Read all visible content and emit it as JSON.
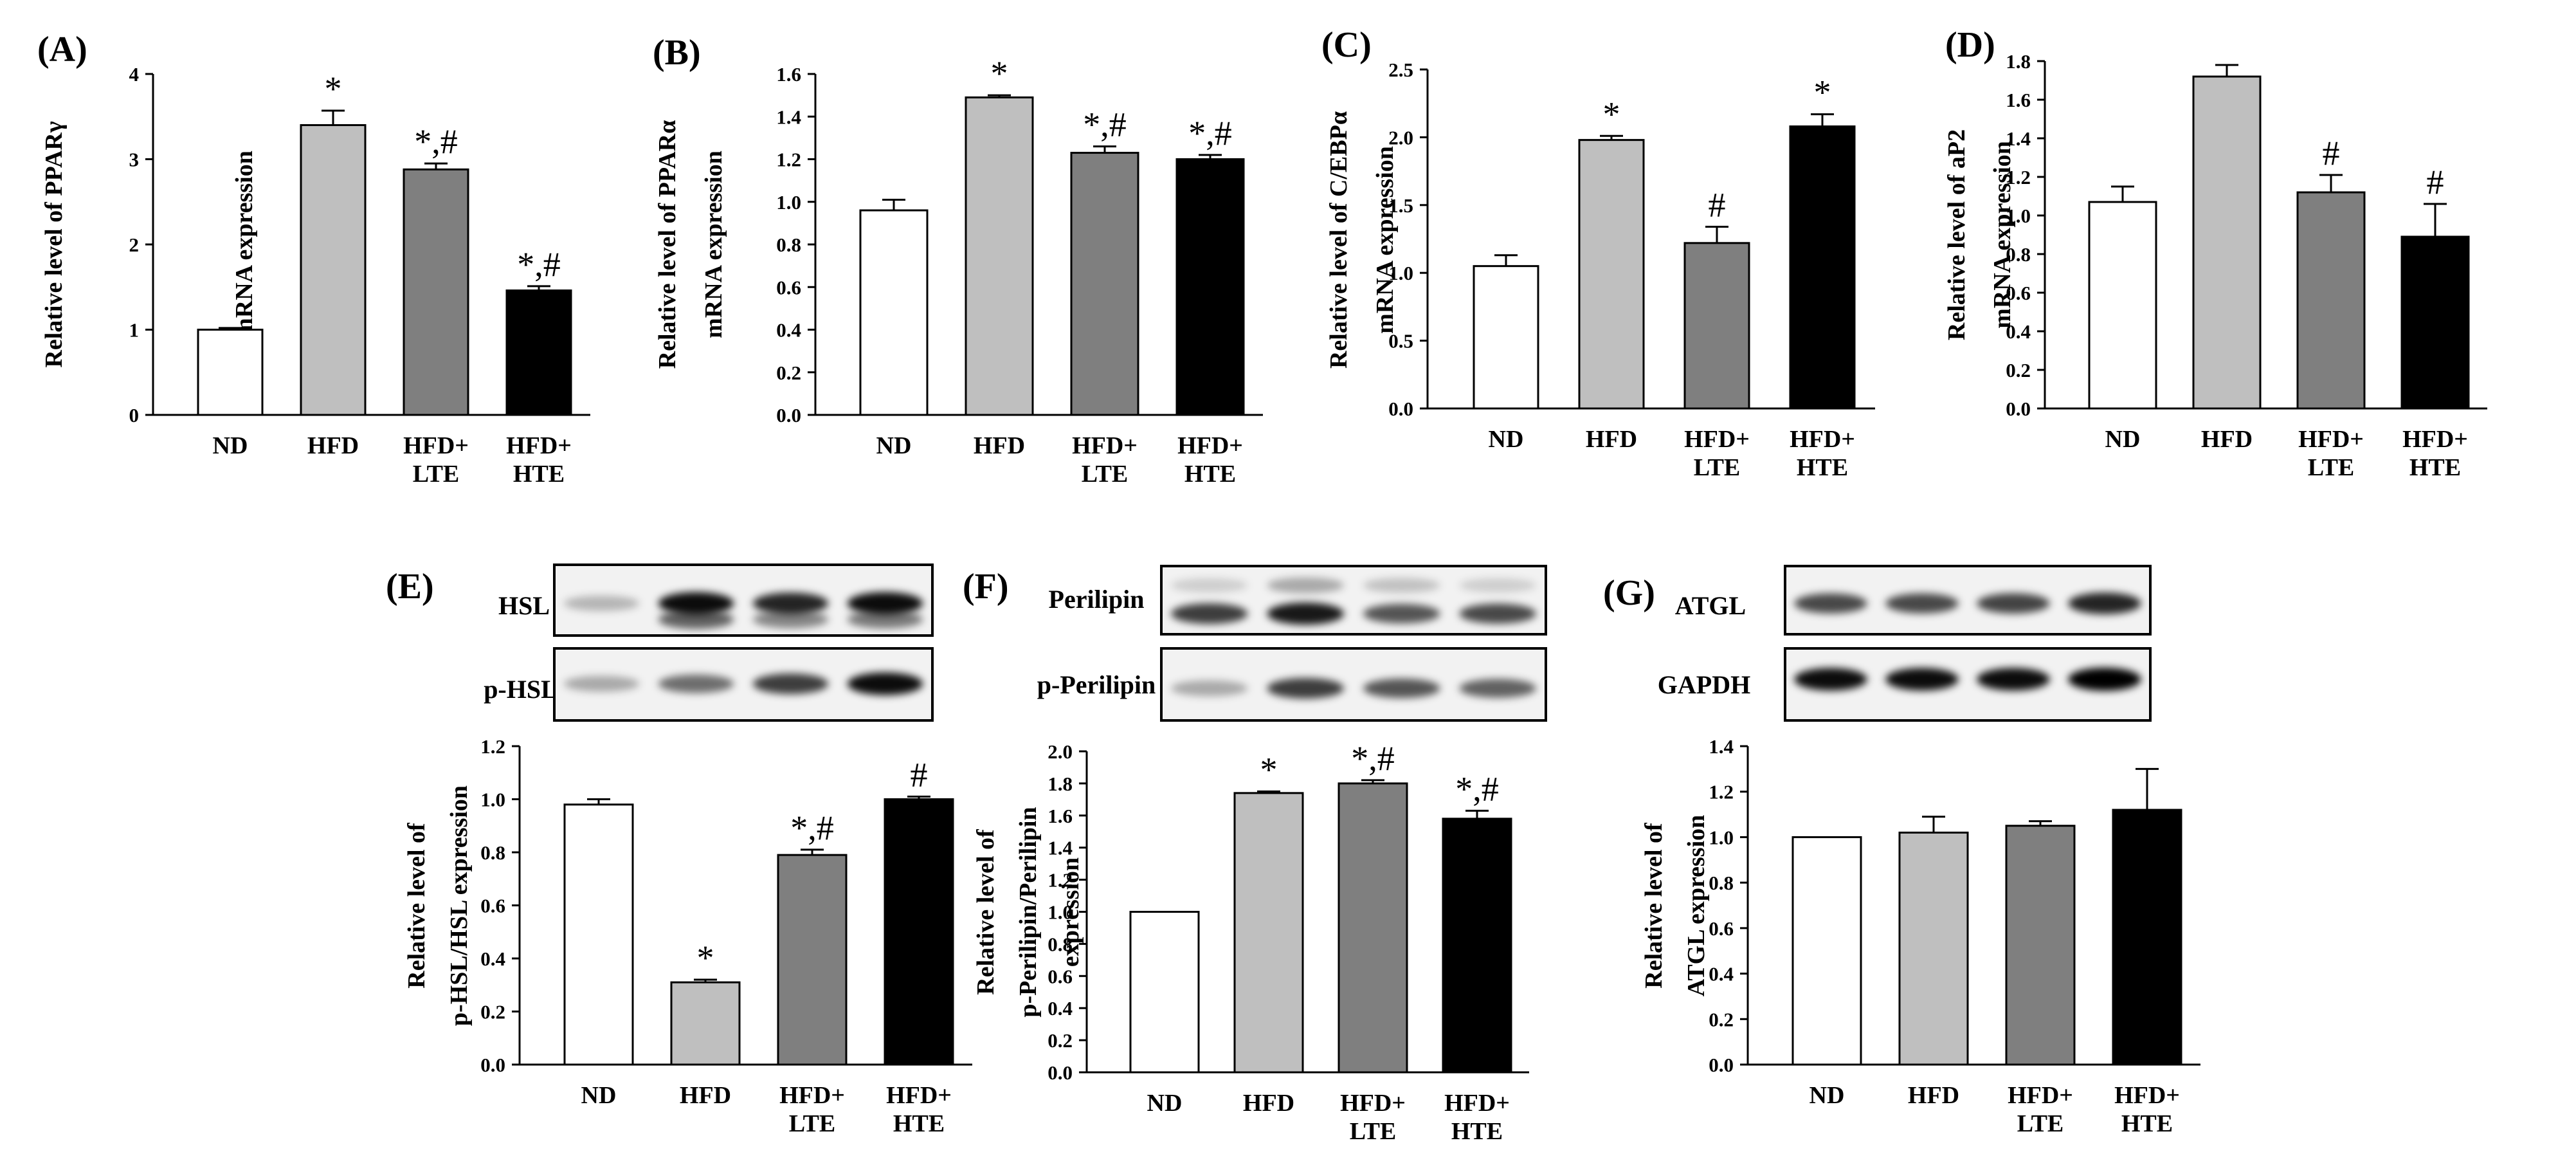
{
  "figure": {
    "groups": [
      "ND",
      "HFD",
      "HFD+ LTE",
      "HFD+ HTE"
    ],
    "group_labels": [
      [
        "ND"
      ],
      [
        "HFD"
      ],
      [
        "HFD+",
        "LTE"
      ],
      [
        "HFD+",
        "HTE"
      ]
    ],
    "colors": {
      "ND": "#ffffff",
      "HFD": "#bfbfbf",
      "HFD+ LTE": "#7f7f7f",
      "HFD+ HTE": "#000000",
      "axis": "#000000"
    }
  },
  "chart_data": [
    {
      "panel": "(A)",
      "type": "bar",
      "title": "",
      "categories": [
        "ND",
        "HFD",
        "HFD+ LTE",
        "HFD+ HTE"
      ],
      "values": [
        1.0,
        3.4,
        2.88,
        1.46
      ],
      "errors": [
        0.02,
        0.17,
        0.07,
        0.05
      ],
      "significance": [
        "",
        "*",
        "*,#",
        "*,#"
      ],
      "ylim": [
        0,
        4
      ],
      "yticks": [
        "0",
        "1",
        "2",
        "3",
        "4"
      ],
      "ylabel": [
        "Relative level of PPARγ",
        "mRNA expression"
      ],
      "xlabel": ""
    },
    {
      "panel": "(B)",
      "type": "bar",
      "title": "",
      "categories": [
        "ND",
        "HFD",
        "HFD+ LTE",
        "HFD+ HTE"
      ],
      "values": [
        0.96,
        1.49,
        1.23,
        1.2
      ],
      "errors": [
        0.05,
        0.01,
        0.03,
        0.02
      ],
      "significance": [
        "",
        "*",
        "*,#",
        "*,#"
      ],
      "ylim": [
        0,
        1.6
      ],
      "yticks": [
        "0.0",
        "0.2",
        "0.4",
        "0.6",
        "0.8",
        "1.0",
        "1.2",
        "1.4",
        "1.6"
      ],
      "ylabel": [
        "Relative level of PPARα",
        "mRNA expression"
      ],
      "xlabel": ""
    },
    {
      "panel": "(C)",
      "type": "bar",
      "title": "",
      "categories": [
        "ND",
        "HFD",
        "HFD+ LTE",
        "HFD+ HTE"
      ],
      "values": [
        1.05,
        1.98,
        1.22,
        2.08
      ],
      "errors": [
        0.08,
        0.03,
        0.12,
        0.09
      ],
      "significance": [
        "",
        "*",
        "#",
        "*"
      ],
      "ylim": [
        0,
        2.5
      ],
      "yticks": [
        "0.0",
        "0.5",
        "1.0",
        "1.5",
        "2.0",
        "2.5"
      ],
      "ylabel": [
        "Relative level of C/EBPα",
        "mRNA expression"
      ],
      "xlabel": ""
    },
    {
      "panel": "(D)",
      "type": "bar",
      "title": "",
      "categories": [
        "ND",
        "HFD",
        "HFD+ LTE",
        "HFD+ HTE"
      ],
      "values": [
        1.07,
        1.72,
        1.12,
        0.89
      ],
      "errors": [
        0.08,
        0.06,
        0.09,
        0.17
      ],
      "significance": [
        "",
        "",
        "#",
        "#"
      ],
      "ylim": [
        0,
        1.8
      ],
      "yticks": [
        "0.0",
        "0.2",
        "0.4",
        "0.6",
        "0.8",
        "1.0",
        "1.2",
        "1.4",
        "1.6",
        "1.8"
      ],
      "ylabel": [
        "Relative level of aP2",
        "mRNA expression"
      ],
      "xlabel": ""
    },
    {
      "panel": "(E)",
      "type": "bar",
      "title": "",
      "categories": [
        "ND",
        "HFD",
        "HFD+ LTE",
        "HFD+ HTE"
      ],
      "values": [
        0.98,
        0.31,
        0.79,
        1.0
      ],
      "errors": [
        0.02,
        0.01,
        0.02,
        0.01
      ],
      "significance": [
        "",
        "*",
        "*,#",
        "#"
      ],
      "ylim": [
        0,
        1.2
      ],
      "yticks": [
        "0.0",
        "0.2",
        "0.4",
        "0.6",
        "0.8",
        "1.0",
        "1.2"
      ],
      "ylabel": [
        "Relative level of",
        "p-HSL/HSL expression"
      ],
      "xlabel": "",
      "blot_labels": [
        "HSL",
        "p-HSL"
      ]
    },
    {
      "panel": "(F)",
      "type": "bar",
      "title": "",
      "categories": [
        "ND",
        "HFD",
        "HFD+ LTE",
        "HFD+ HTE"
      ],
      "values": [
        1.0,
        1.74,
        1.8,
        1.58
      ],
      "errors": [
        0.0,
        0.01,
        0.02,
        0.05
      ],
      "significance": [
        "",
        "*",
        "*,#",
        "*,#"
      ],
      "ylim": [
        0,
        2.0
      ],
      "yticks": [
        "0.0",
        "0.2",
        "0.4",
        "0.6",
        "0.8",
        "1.0",
        "1.2",
        "1.4",
        "1.6",
        "1.8",
        "2.0"
      ],
      "ylabel": [
        "Relative level of",
        "p-Perilipin/Perilipin",
        "expression"
      ],
      "xlabel": "",
      "blot_labels": [
        "Perilipin",
        "p-Perilipin"
      ]
    },
    {
      "panel": "(G)",
      "type": "bar",
      "title": "",
      "categories": [
        "ND",
        "HFD",
        "HFD+ LTE",
        "HFD+ HTE"
      ],
      "values": [
        1.0,
        1.02,
        1.05,
        1.12
      ],
      "errors": [
        0.0,
        0.07,
        0.02,
        0.18
      ],
      "significance": [
        "",
        "",
        "",
        ""
      ],
      "ylim": [
        0,
        1.4
      ],
      "yticks": [
        "0.0",
        "0.2",
        "0.4",
        "0.6",
        "0.8",
        "1.0",
        "1.2",
        "1.4"
      ],
      "ylabel": [
        "Relative level of",
        "ATGL expression"
      ],
      "xlabel": "",
      "blot_labels": [
        "ATGL",
        "GAPDH"
      ]
    }
  ]
}
